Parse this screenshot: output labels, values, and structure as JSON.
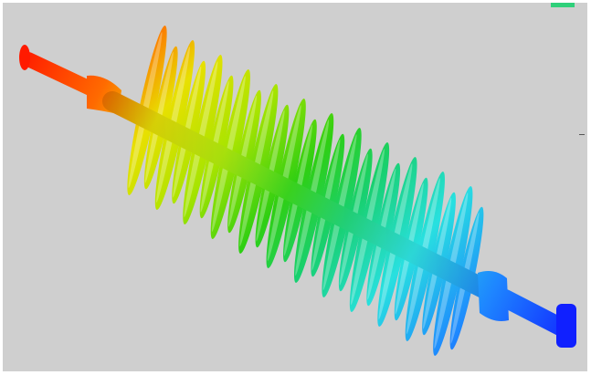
{
  "scene": {
    "subject": "insulator-3d-model",
    "background_color": "#cfcfcf",
    "indicator_color": "#2fd07a",
    "shed_count": 24,
    "gradient_colors": [
      "#ff1a00",
      "#ff6a00",
      "#e8e000",
      "#a8e400",
      "#2fcf12",
      "#18d070",
      "#28e0e0",
      "#1e86ff",
      "#1020ff"
    ]
  }
}
